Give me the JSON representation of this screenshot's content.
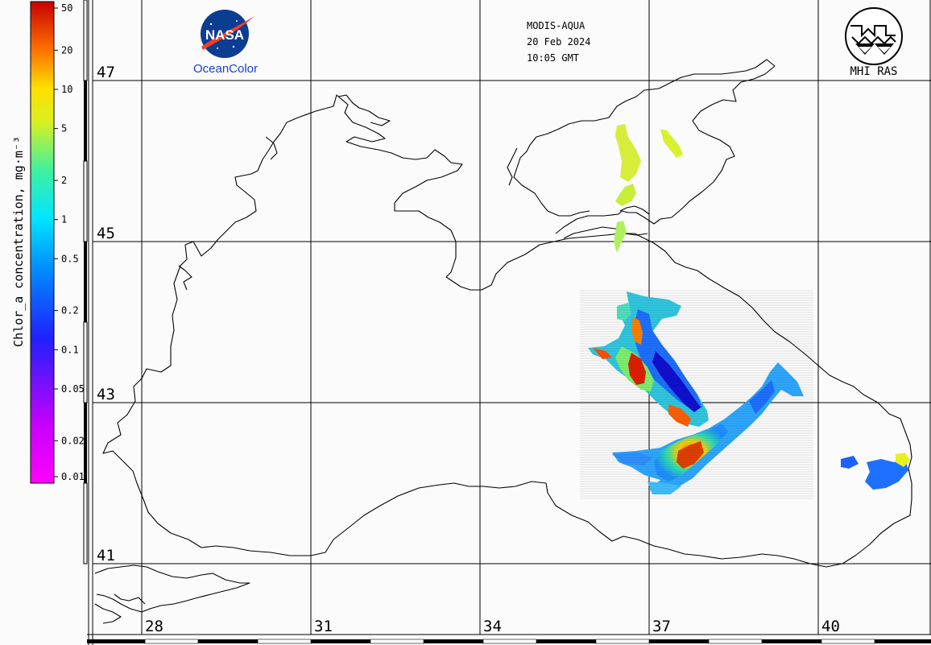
{
  "header": {
    "sensor": "MODIS-AQUA",
    "date": "20 Feb 2024",
    "time": "10:05 GMT"
  },
  "logos": {
    "nasa_text": "NASA",
    "nasa_caption": "OceanColor",
    "institute": "MHI RAS"
  },
  "colorbar": {
    "title": "Chlor_a concentration, mg·m⁻³",
    "ticks": [
      "50",
      "20",
      "10",
      "5",
      "2",
      "1",
      "0.5",
      "0.2",
      "0.1",
      "0.05",
      "0.02",
      "0.01"
    ]
  },
  "latitude_labels": [
    "47",
    "45",
    "43",
    "41"
  ],
  "longitude_labels": [
    "28",
    "31",
    "34",
    "37",
    "40"
  ],
  "colors": {
    "background": "#fbfbfb",
    "coastline": "#000000",
    "grid": "#000000"
  }
}
